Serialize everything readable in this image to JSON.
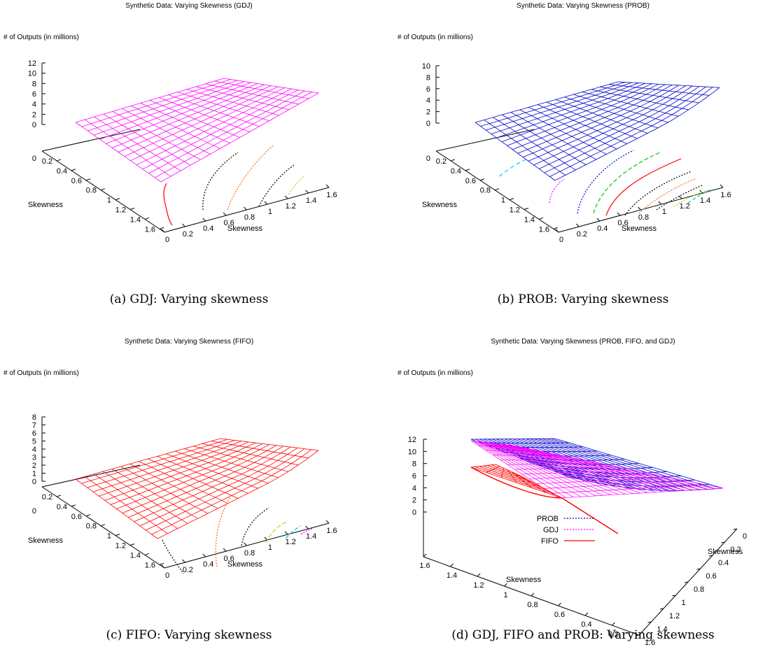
{
  "figures": [
    {
      "id": "a",
      "caption": "(a) GDJ: Varying skewness"
    },
    {
      "id": "b",
      "caption": "(b) PROB: Varying skewness"
    },
    {
      "id": "c",
      "caption": "(c) FIFO: Varying skewness"
    },
    {
      "id": "d",
      "caption": "(d) GDJ, FIFO and PROB: Varying skewness"
    }
  ],
  "colors": {
    "gdj": "#ff00ff",
    "prob": "#0000cc",
    "fifo": "#ff0000"
  },
  "chart_data": [
    {
      "type": "surface3d",
      "title": "Synthetic Data: Varying Skewness (GDJ)",
      "zlabel": "# of Outputs (in millions)",
      "xlabel": "Skewness",
      "ylabel": "Skewness",
      "x_ticks": [
        "0",
        "0.2",
        "0.4",
        "0.6",
        "0.8",
        "1",
        "1.2",
        "1.4",
        "1.6"
      ],
      "y_ticks": [
        "0.2",
        "0.4",
        "0.6",
        "0.8",
        "1",
        "1.2",
        "1.4",
        "1.6"
      ],
      "z_ticks": [
        "0",
        "2",
        "4",
        "6",
        "8",
        "10",
        "12"
      ],
      "base_tick": "0",
      "series": [
        {
          "name": "GDJ",
          "color": "#ff00ff"
        }
      ]
    },
    {
      "type": "surface3d",
      "title": "Synthetic Data: Varying Skewness (PROB)",
      "zlabel": "# of Outputs (in millions)",
      "xlabel": "Skewness",
      "ylabel": "Skewness",
      "x_ticks": [
        "0",
        "0.2",
        "0.4",
        "0.6",
        "0.8",
        "1",
        "1.2",
        "1.4",
        "1.6"
      ],
      "y_ticks": [
        "0.2",
        "0.4",
        "0.6",
        "0.8",
        "1",
        "1.2",
        "1.4",
        "1.6"
      ],
      "z_ticks": [
        "0",
        "2",
        "4",
        "6",
        "8",
        "10"
      ],
      "base_tick": "0",
      "series": [
        {
          "name": "PROB",
          "color": "#0000cc"
        }
      ]
    },
    {
      "type": "surface3d",
      "title": "Synthetic Data: Varying Skewness (FIFO)",
      "zlabel": "# of Outputs (in millions)",
      "xlabel": "Skewness",
      "ylabel": "Skewness",
      "x_ticks": [
        "0",
        "0.2",
        "0.4",
        "0.6",
        "0.8",
        "1",
        "1.2",
        "1.4",
        "1.6"
      ],
      "y_ticks": [
        "0.2",
        "0.4",
        "0.6",
        "0.8",
        "1",
        "1.2",
        "1.4",
        "1.6"
      ],
      "z_ticks": [
        "0",
        "1",
        "2",
        "3",
        "4",
        "5",
        "6",
        "7",
        "8"
      ],
      "base_tick": "0",
      "series": [
        {
          "name": "FIFO",
          "color": "#ff0000"
        }
      ]
    },
    {
      "type": "surface3d",
      "title": "Synthetic Data: Varying Skewness (PROB, FIFO, and GDJ)",
      "zlabel": "# of Outputs (in millions)",
      "xlabel": "Skewness",
      "ylabel": "Skewness",
      "x_ticks": [
        "1.6",
        "1.4",
        "1.2",
        "1",
        "0.8",
        "0.6",
        "0.4",
        "0.2"
      ],
      "y_ticks": [
        "0",
        "0.2",
        "0.4",
        "0.6",
        "0.8",
        "1",
        "1.2",
        "1.4",
        "1.6"
      ],
      "z_ticks": [
        "0",
        "2",
        "4",
        "6",
        "8",
        "10",
        "12"
      ],
      "legend_position": "lower-left",
      "series": [
        {
          "name": "PROB",
          "color": "#0000cc"
        },
        {
          "name": "GDJ",
          "color": "#ff00ff"
        },
        {
          "name": "FIFO",
          "color": "#ff0000"
        }
      ]
    }
  ]
}
